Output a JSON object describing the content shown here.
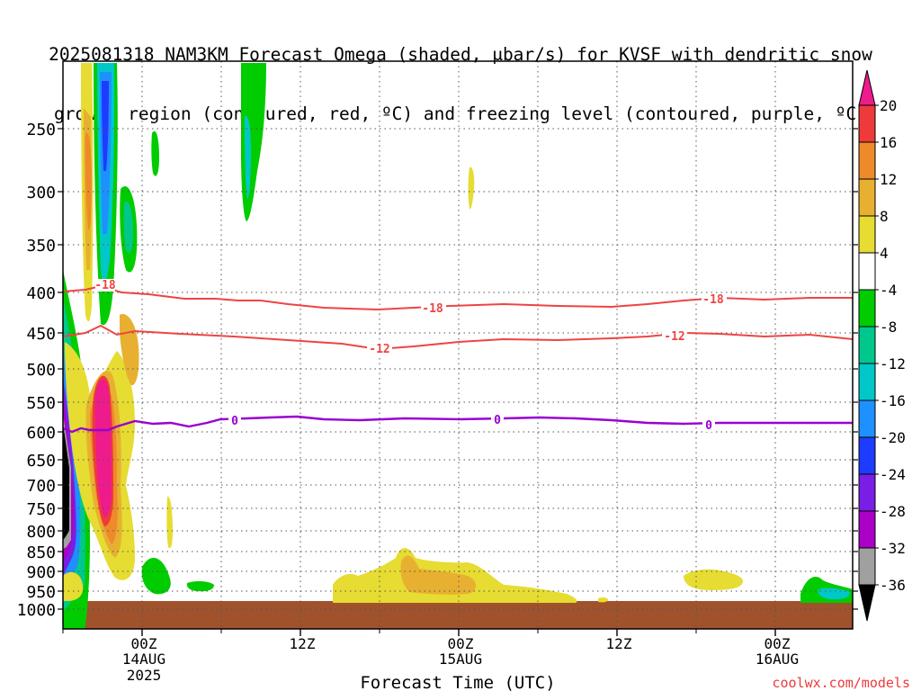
{
  "chart_data": {
    "type": "heatmap",
    "title_lines": [
      "2025081318 NAM3KM Forecast Omega (shaded, μbar/s) for KVSF with dendritic snow",
      "growth region (contoured, red, ºC) and freezing level (contoured, purple, ºC)"
    ],
    "xlabel": "Forecast Time (UTC)",
    "credit": "coolwx.com/models",
    "x_ticks": [
      {
        "label": "00Z",
        "sub": [
          "14AUG",
          "2025"
        ]
      },
      {
        "label": "12Z",
        "sub": []
      },
      {
        "label": "00Z",
        "sub": [
          "15AUG"
        ]
      },
      {
        "label": "12Z",
        "sub": []
      },
      {
        "label": "00Z",
        "sub": [
          "16AUG"
        ]
      }
    ],
    "y_ticks": [
      "250",
      "300",
      "350",
      "400",
      "450",
      "500",
      "550",
      "600",
      "650",
      "700",
      "750",
      "800",
      "850",
      "900",
      "950",
      "1000"
    ],
    "colorbar": {
      "labels": [
        "20",
        "16",
        "12",
        "8",
        "4",
        "-4",
        "-8",
        "-12",
        "-16",
        "-20",
        "-24",
        "-28",
        "-32",
        "-36"
      ],
      "colors": {
        "above_20": "#ee1b8c",
        "16_to_20": "#ee3a3a",
        "12_to_16": "#ee8a2a",
        "8_to_12": "#e8b030",
        "4_to_8": "#e6dc32",
        "minus4_to_4": "#ffffff",
        "minus8_to_minus4": "#00cc00",
        "minus12_to_minus8": "#00c88c",
        "minus16_to_minus12": "#00c8c8",
        "minus20_to_minus16": "#1e90ff",
        "minus24_to_minus20": "#1e3cff",
        "minus28_to_minus24": "#7a1ee6",
        "minus32_to_minus28": "#aa00c8",
        "minus36_to_minus32": "#a0a0a0",
        "below_minus36": "#000000"
      }
    },
    "contours": [
      {
        "label": "-18",
        "color": "#ee4444",
        "pressure_hpa": [
          400,
          404,
          406,
          405,
          407
        ]
      },
      {
        "label": "-12",
        "color": "#ee4444",
        "pressure_hpa": [
          452,
          458,
          462,
          458,
          458
        ]
      },
      {
        "label": "0",
        "color": "#9a00d0",
        "pressure_hpa": [
          595,
          580,
          578,
          582,
          585
        ]
      }
    ],
    "terrain_color": "#a0522d",
    "grid": true
  }
}
